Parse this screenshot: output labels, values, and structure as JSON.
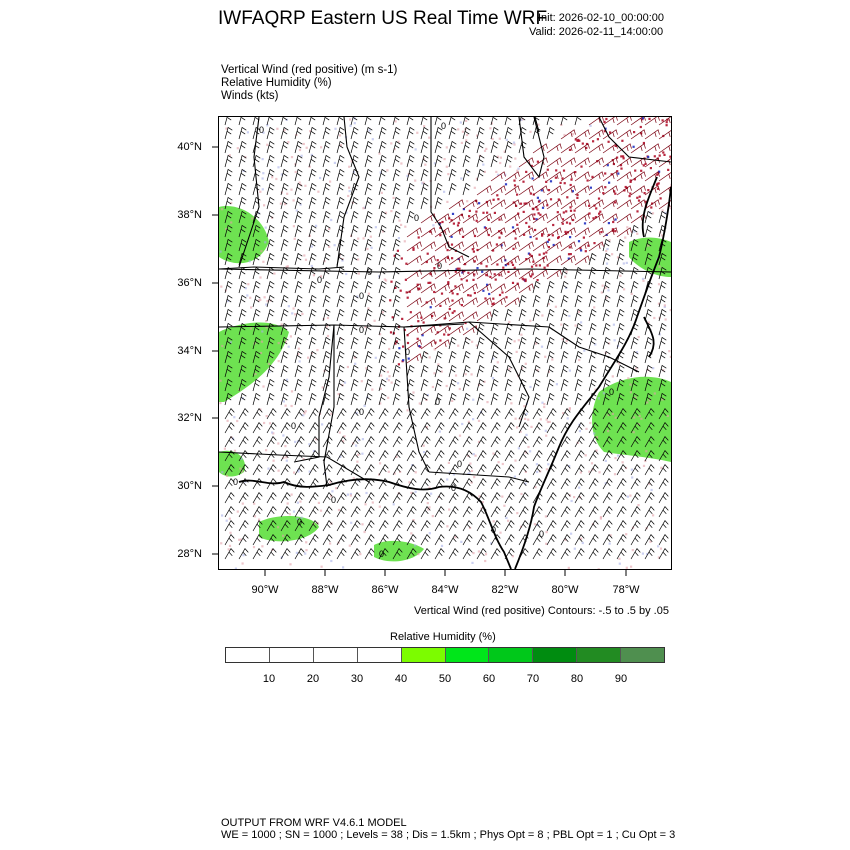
{
  "header": {
    "title": "IWFAQRP Eastern US Real Time WRF",
    "init": "Init: 2026-02-10_00:00:00",
    "valid": "Valid: 2026-02-11_14:00:00"
  },
  "fields": [
    "Vertical Wind (red positive)   (m s-1)",
    "Relative Humidity   (%)",
    "Winds   (kts)"
  ],
  "map": {
    "lat_labels": [
      "40°N",
      "38°N",
      "36°N",
      "34°N",
      "32°N",
      "30°N",
      "28°N"
    ],
    "lon_labels": [
      "90°W",
      "88°W",
      "86°W",
      "84°W",
      "82°W",
      "80°W",
      "78°W"
    ],
    "contour_label": "0",
    "colors": {
      "positive": "#b0102a",
      "negative": "#2030c0",
      "humid": "#55dd33"
    }
  },
  "contour_note": "Vertical Wind (red positive) Contours: -.5 to .5 by .05",
  "colorbar": {
    "title": "Relative Humidity  (%)",
    "labels": [
      "10",
      "20",
      "30",
      "40",
      "50",
      "60",
      "70",
      "80",
      "90"
    ],
    "colors": [
      "#ffffff",
      "#ffffff",
      "#ffffff",
      "#ffffff",
      "#7cfc00",
      "#00e61a",
      "#00c81a",
      "#008c10",
      "#228b22",
      "#4f8f4f"
    ]
  },
  "footer": {
    "line1": "OUTPUT FROM WRF V4.6.1 MODEL",
    "line2": "WE = 1000 ; SN = 1000 ; Levels = 38 ; Dis = 1.5km ; Phys Opt = 8 ; PBL Opt = 1 ; Cu Opt = 3"
  }
}
